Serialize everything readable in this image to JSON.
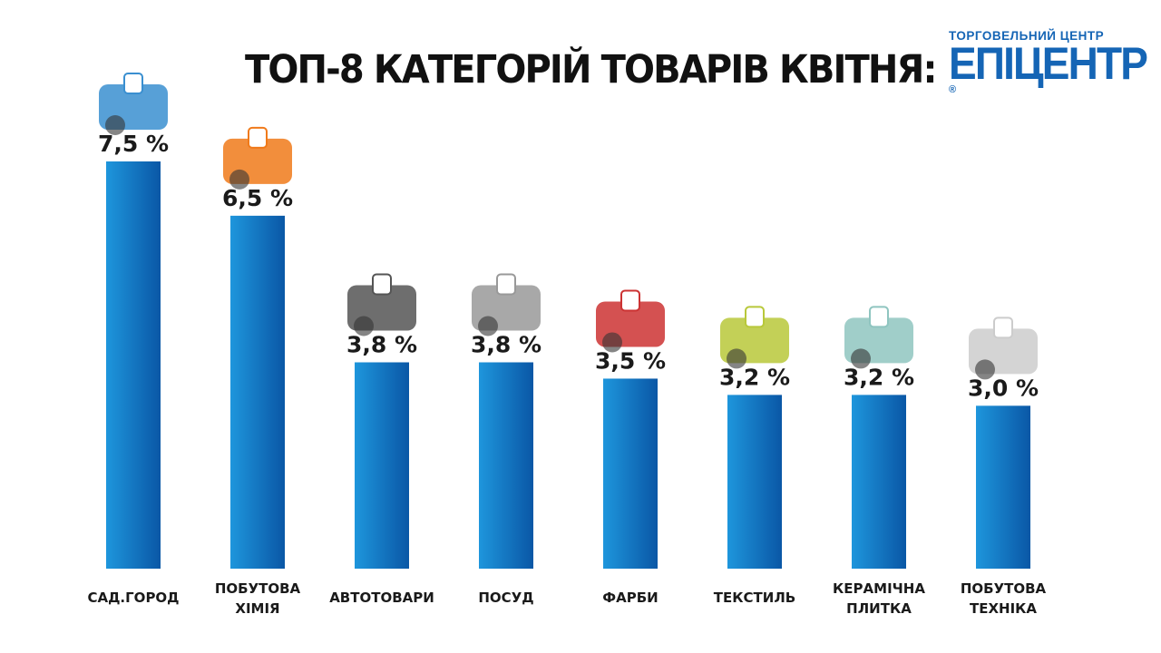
{
  "title": "ТОП-8 КАТЕГОРІЙ ТОВАРІВ КВІТНЯ:",
  "logo": {
    "subtitle": "ТОРГОВЕЛЬНИЙ ЦЕНТР",
    "name": "ЕПІЦЕНТР",
    "mark": "®"
  },
  "colors": {
    "bar_light": "#1e96dc",
    "bar_dark": "#0a57a6",
    "text": "#1a1a1a",
    "brand": "#1565b5"
  },
  "chart_data": {
    "type": "bar",
    "title": "ТОП-8 КАТЕГОРІЙ ТОВАРІВ КВІТНЯ:",
    "categories": [
      [
        "САД.ГОРОД"
      ],
      [
        "ПОБУТОВА",
        "ХІМІЯ"
      ],
      [
        "АВТОТОВАРИ"
      ],
      [
        "ПОСУД"
      ],
      [
        "ФАРБИ"
      ],
      [
        "ТЕКСТИЛЬ"
      ],
      [
        "КЕРАМІЧНА",
        "ПЛИТКА"
      ],
      [
        "ПОБУТОВА",
        "ТЕХНІКА"
      ]
    ],
    "values": [
      7.5,
      6.5,
      3.8,
      3.8,
      3.5,
      3.2,
      3.2,
      3.0
    ],
    "value_labels": [
      "7,5 %",
      "6,5 %",
      "3,8 %",
      "3,8 %",
      "3,5 %",
      "3,2 %",
      "3,2 %",
      "3,0 %"
    ],
    "icons": [
      "wheelbarrow-icon",
      "cleaning-basket-icon",
      "tire-jack-icon",
      "cookware-icon",
      "paint-cans-icon",
      "textile-rolls-icon",
      "ceramic-tiles-icon",
      "appliances-icon"
    ],
    "ylim": [
      0,
      7.5
    ],
    "grid": false,
    "legend": "none"
  }
}
